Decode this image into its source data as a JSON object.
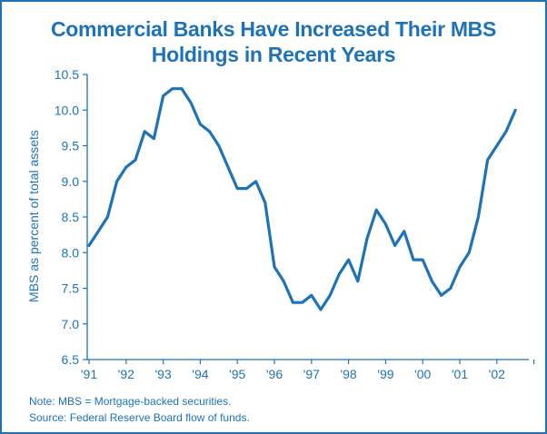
{
  "chart_data": {
    "type": "line",
    "title": "Commercial Banks Have Increased Their MBS Holdings in Recent Years",
    "title_lines": [
      "Commercial Banks Have Increased Their MBS",
      "Holdings in Recent Years"
    ],
    "ylabel": "MBS as percent of total assets",
    "xlabel": "",
    "ylim": [
      6.5,
      10.5
    ],
    "yticks": [
      "6.5",
      "7.0",
      "7.5",
      "8.0",
      "8.5",
      "9.0",
      "9.5",
      "10.0",
      "10.5"
    ],
    "xlim": [
      1991,
      2003
    ],
    "xticks": [
      "'91",
      "'92",
      "'93",
      "'94",
      "'95",
      "'96",
      "'97",
      "'98",
      "'99",
      "'00",
      "'01",
      "'02"
    ],
    "grid": false,
    "color": "#1e73b8",
    "series": [
      {
        "x": [
          1991.0,
          1991.25,
          1991.5,
          1991.75,
          1992.0,
          1992.25,
          1992.5,
          1992.75,
          1993.0,
          1993.25,
          1993.5,
          1993.75,
          1994.0,
          1994.25,
          1994.5,
          1994.75,
          1995.0,
          1995.25,
          1995.5,
          1995.75,
          1996.0,
          1996.25,
          1996.5,
          1996.75,
          1997.0,
          1997.25,
          1997.5,
          1997.75,
          1998.0,
          1998.25,
          1998.5,
          1998.75,
          1999.0,
          1999.25,
          1999.5,
          1999.75,
          2000.0,
          2000.25,
          2000.5,
          2000.75,
          2001.0,
          2001.25,
          2001.5,
          2001.75,
          2002.0,
          2002.25,
          2002.5
        ],
        "values": [
          8.1,
          8.3,
          8.5,
          9.0,
          9.2,
          9.3,
          9.7,
          9.6,
          10.2,
          10.3,
          10.3,
          10.1,
          9.8,
          9.7,
          9.5,
          9.2,
          8.9,
          8.9,
          9.0,
          8.7,
          7.8,
          7.6,
          7.3,
          7.3,
          7.4,
          7.2,
          7.4,
          7.7,
          7.9,
          7.6,
          8.2,
          8.6,
          8.4,
          8.1,
          8.3,
          7.9,
          7.9,
          7.6,
          7.4,
          7.5,
          7.8,
          8.0,
          8.5,
          9.3,
          9.5,
          9.7,
          10.0
        ]
      }
    ]
  },
  "notes": {
    "note": "Note: MBS = Mortgage-backed securities.",
    "source": "Source: Federal Reserve Board flow of funds."
  }
}
